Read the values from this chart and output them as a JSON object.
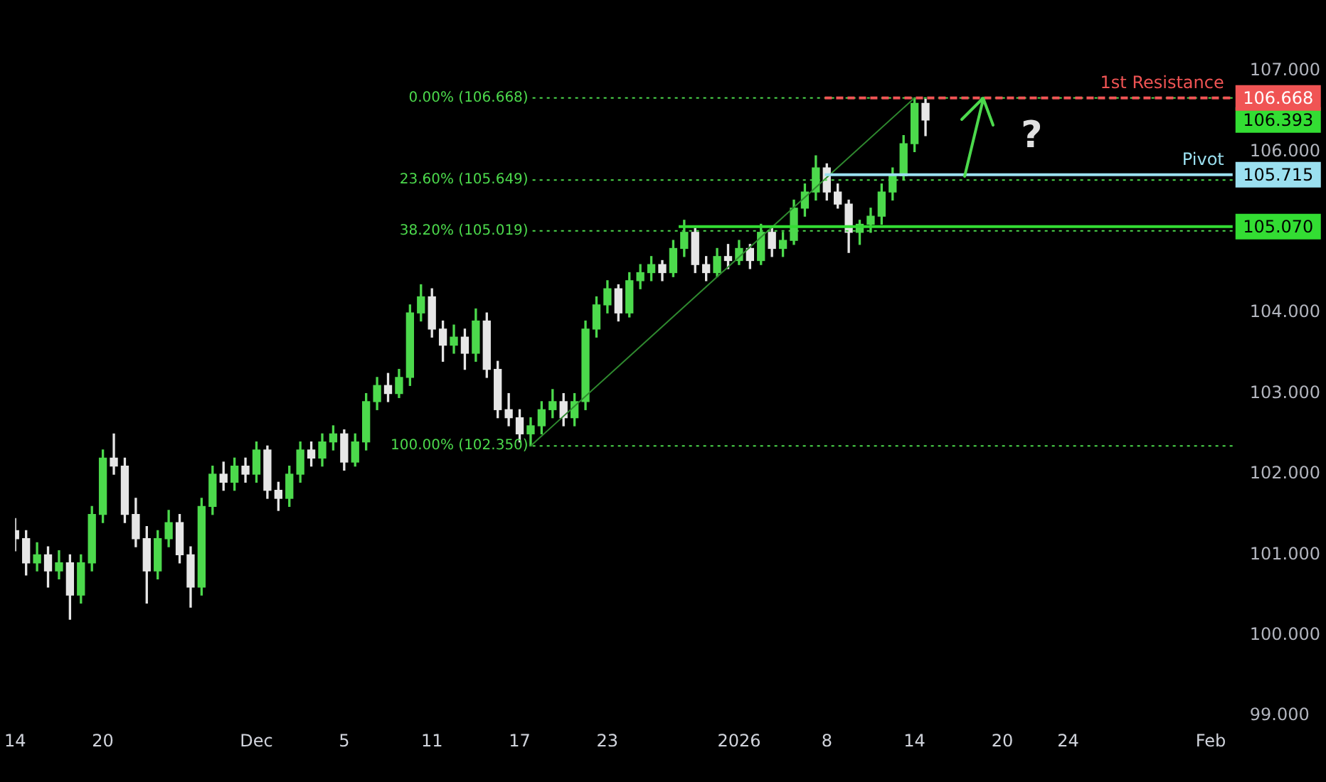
{
  "chart_data": {
    "type": "candlestick",
    "categories": [
      "14",
      null,
      null,
      null,
      null,
      null,
      null,
      null,
      "20",
      null,
      null,
      null,
      null,
      null,
      null,
      null,
      null,
      null,
      null,
      null,
      null,
      null,
      "Dec",
      null,
      null,
      null,
      null,
      null,
      null,
      null,
      "5",
      null,
      null,
      null,
      null,
      null,
      null,
      null,
      "11",
      null,
      null,
      null,
      null,
      null,
      null,
      null,
      "17",
      null,
      null,
      null,
      null,
      null,
      null,
      null,
      "23",
      null,
      null,
      null,
      null,
      null,
      null,
      null,
      null,
      null,
      null,
      null,
      "2026",
      null,
      null,
      null,
      null,
      null,
      null,
      null,
      "8",
      null,
      null,
      null,
      null,
      null,
      null,
      null,
      "14",
      null,
      null,
      null,
      null,
      null,
      null,
      null,
      "20",
      null,
      null,
      null,
      null,
      null,
      "24",
      null,
      null,
      null,
      null,
      null,
      null,
      null,
      null,
      null,
      null,
      null,
      null,
      "Feb",
      null,
      null
    ],
    "ohlc": [
      [
        101.3,
        101.45,
        101.05,
        101.2
      ],
      [
        101.2,
        101.3,
        100.75,
        100.9
      ],
      [
        100.9,
        101.15,
        100.8,
        101.0
      ],
      [
        101.0,
        101.1,
        100.6,
        100.8
      ],
      [
        100.8,
        101.05,
        100.7,
        100.9
      ],
      [
        100.9,
        101.0,
        100.2,
        100.5
      ],
      [
        100.5,
        101.0,
        100.4,
        100.9
      ],
      [
        100.9,
        101.6,
        100.8,
        101.5
      ],
      [
        101.5,
        102.3,
        101.4,
        102.2
      ],
      [
        102.2,
        102.5,
        102.0,
        102.1
      ],
      [
        102.1,
        102.2,
        101.4,
        101.5
      ],
      [
        101.5,
        101.7,
        101.1,
        101.2
      ],
      [
        101.2,
        101.35,
        100.4,
        100.8
      ],
      [
        100.8,
        101.3,
        100.7,
        101.2
      ],
      [
        101.2,
        101.55,
        101.1,
        101.4
      ],
      [
        101.4,
        101.5,
        100.9,
        101.0
      ],
      [
        101.0,
        101.1,
        100.35,
        100.6
      ],
      [
        100.6,
        101.7,
        100.5,
        101.6
      ],
      [
        101.6,
        102.1,
        101.5,
        102.0
      ],
      [
        102.0,
        102.15,
        101.8,
        101.9
      ],
      [
        101.9,
        102.2,
        101.8,
        102.1
      ],
      [
        102.1,
        102.2,
        101.9,
        102.0
      ],
      [
        102.0,
        102.4,
        101.9,
        102.3
      ],
      [
        102.3,
        102.35,
        101.7,
        101.8
      ],
      [
        101.8,
        101.9,
        101.55,
        101.7
      ],
      [
        101.7,
        102.1,
        101.6,
        102.0
      ],
      [
        102.0,
        102.4,
        101.9,
        102.3
      ],
      [
        102.3,
        102.4,
        102.1,
        102.2
      ],
      [
        102.2,
        102.5,
        102.1,
        102.4
      ],
      [
        102.4,
        102.6,
        102.3,
        102.5
      ],
      [
        102.5,
        102.55,
        102.05,
        102.15
      ],
      [
        102.15,
        102.5,
        102.1,
        102.4
      ],
      [
        102.4,
        103.0,
        102.3,
        102.9
      ],
      [
        102.9,
        103.2,
        102.8,
        103.1
      ],
      [
        103.1,
        103.25,
        102.9,
        103.0
      ],
      [
        103.0,
        103.3,
        102.95,
        103.2
      ],
      [
        103.2,
        104.1,
        103.1,
        104.0
      ],
      [
        104.0,
        104.35,
        103.9,
        104.2
      ],
      [
        104.2,
        104.3,
        103.7,
        103.8
      ],
      [
        103.8,
        103.9,
        103.4,
        103.6
      ],
      [
        103.6,
        103.85,
        103.5,
        103.7
      ],
      [
        103.7,
        103.8,
        103.3,
        103.5
      ],
      [
        103.5,
        104.05,
        103.4,
        103.9
      ],
      [
        103.9,
        104.0,
        103.2,
        103.3
      ],
      [
        103.3,
        103.4,
        102.7,
        102.8
      ],
      [
        102.8,
        103.0,
        102.6,
        102.7
      ],
      [
        102.7,
        102.8,
        102.4,
        102.5
      ],
      [
        102.5,
        102.7,
        102.35,
        102.6
      ],
      [
        102.6,
        102.9,
        102.5,
        102.8
      ],
      [
        102.8,
        103.05,
        102.7,
        102.9
      ],
      [
        102.9,
        103.0,
        102.6,
        102.7
      ],
      [
        102.7,
        103.0,
        102.6,
        102.9
      ],
      [
        102.9,
        103.9,
        102.8,
        103.8
      ],
      [
        103.8,
        104.2,
        103.7,
        104.1
      ],
      [
        104.1,
        104.4,
        104.0,
        104.3
      ],
      [
        104.3,
        104.35,
        103.9,
        104.0
      ],
      [
        104.0,
        104.5,
        103.95,
        104.4
      ],
      [
        104.4,
        104.6,
        104.3,
        104.5
      ],
      [
        104.5,
        104.7,
        104.4,
        104.6
      ],
      [
        104.6,
        104.65,
        104.4,
        104.5
      ],
      [
        104.5,
        104.9,
        104.45,
        104.8
      ],
      [
        104.8,
        105.15,
        104.7,
        105.0
      ],
      [
        105.0,
        105.05,
        104.5,
        104.6
      ],
      [
        104.6,
        104.7,
        104.4,
        104.5
      ],
      [
        104.5,
        104.8,
        104.45,
        104.7
      ],
      [
        104.7,
        104.85,
        104.55,
        104.65
      ],
      [
        104.65,
        104.9,
        104.6,
        104.8
      ],
      [
        104.8,
        104.85,
        104.55,
        104.65
      ],
      [
        104.65,
        105.1,
        104.6,
        105.0
      ],
      [
        105.0,
        105.05,
        104.7,
        104.8
      ],
      [
        104.8,
        105.0,
        104.7,
        104.9
      ],
      [
        104.9,
        105.4,
        104.85,
        105.3
      ],
      [
        105.3,
        105.6,
        105.2,
        105.5
      ],
      [
        105.5,
        105.95,
        105.4,
        105.8
      ],
      [
        105.8,
        105.85,
        105.4,
        105.5
      ],
      [
        105.5,
        105.6,
        105.3,
        105.35
      ],
      [
        105.35,
        105.4,
        104.75,
        105.0
      ],
      [
        105.0,
        105.15,
        104.85,
        105.1
      ],
      [
        105.1,
        105.3,
        105.0,
        105.2
      ],
      [
        105.2,
        105.6,
        105.1,
        105.5
      ],
      [
        105.5,
        105.8,
        105.4,
        105.7
      ],
      [
        105.7,
        106.2,
        105.65,
        106.1
      ],
      [
        106.1,
        106.668,
        106.0,
        106.6
      ],
      [
        106.6,
        106.65,
        106.2,
        106.393
      ],
      null,
      null,
      null,
      null,
      null,
      null,
      null,
      null,
      null,
      null,
      null,
      null,
      null,
      null,
      null,
      null,
      null,
      null,
      null,
      null,
      null,
      null,
      null,
      null,
      null,
      null,
      null,
      null
    ],
    "colors": [
      "#e6e6e6",
      "#e6e6e6",
      "#4cd94c",
      "#e6e6e6",
      "#4cd94c",
      "#e6e6e6",
      "#4cd94c",
      "#4cd94c",
      "#4cd94c",
      "#e6e6e6",
      "#e6e6e6",
      "#e6e6e6",
      "#e6e6e6",
      "#4cd94c",
      "#4cd94c",
      "#e6e6e6",
      "#e6e6e6",
      "#4cd94c",
      "#4cd94c",
      "#e6e6e6",
      "#4cd94c",
      "#e6e6e6",
      "#4cd94c",
      "#e6e6e6",
      "#e6e6e6",
      "#4cd94c",
      "#4cd94c",
      "#e6e6e6",
      "#4cd94c",
      "#4cd94c",
      "#e6e6e6",
      "#4cd94c",
      "#4cd94c",
      "#4cd94c",
      "#e6e6e6",
      "#4cd94c",
      "#4cd94c",
      "#4cd94c",
      "#e6e6e6",
      "#e6e6e6",
      "#4cd94c",
      "#e6e6e6",
      "#4cd94c",
      "#e6e6e6",
      "#e6e6e6",
      "#e6e6e6",
      "#e6e6e6",
      "#4cd94c",
      "#4cd94c",
      "#4cd94c",
      "#e6e6e6",
      "#4cd94c",
      "#4cd94c",
      "#4cd94c",
      "#4cd94c",
      "#e6e6e6",
      "#4cd94c",
      "#4cd94c",
      "#4cd94c",
      "#e6e6e6",
      "#4cd94c",
      "#4cd94c",
      "#e6e6e6",
      "#e6e6e6",
      "#4cd94c",
      "#e6e6e6",
      "#4cd94c",
      "#e6e6e6",
      "#4cd94c",
      "#e6e6e6",
      "#4cd94c",
      "#4cd94c",
      "#4cd94c",
      "#4cd94c",
      "#e6e6e6",
      "#e6e6e6",
      "#e6e6e6",
      "#4cd94c",
      "#4cd94c",
      "#4cd94c",
      "#4cd94c",
      "#4cd94c",
      "#4cd94c",
      "#e6e6e6",
      null,
      null,
      null,
      null,
      null,
      null,
      null,
      null,
      null,
      null,
      null,
      null,
      null,
      null,
      null,
      null,
      null,
      null,
      null,
      null,
      null,
      null,
      null,
      null,
      null,
      null,
      null,
      null
    ],
    "series": [
      {
        "type": "line",
        "color": "#2f8a2f",
        "values": [
          null,
          null,
          null,
          null,
          null,
          null,
          null,
          null,
          null,
          null,
          null,
          null,
          null,
          null,
          null,
          null,
          null,
          null,
          null,
          null,
          null,
          null,
          null,
          null,
          null,
          null,
          null,
          null,
          null,
          null,
          null,
          null,
          null,
          null,
          null,
          null,
          null,
          null,
          null,
          null,
          null,
          null,
          null,
          null,
          null,
          null,
          null,
          102.35,
          null,
          null,
          null,
          null,
          null,
          null,
          null,
          null,
          null,
          null,
          null,
          null,
          null,
          null,
          null,
          null,
          null,
          null,
          null,
          null,
          null,
          null,
          null,
          null,
          null,
          null,
          null,
          null,
          null,
          null,
          null,
          null,
          null,
          null,
          106.668,
          null,
          null,
          null,
          null,
          null,
          null,
          null,
          null,
          null,
          null,
          null,
          null,
          null,
          null,
          null,
          null,
          null,
          null,
          null,
          null,
          null,
          null,
          null,
          null,
          null,
          null,
          null,
          null,
          null
        ]
      }
    ],
    "ylim": [
      99,
      107
    ],
    "yticks": [
      {
        "value": 99,
        "label": "99.000"
      },
      {
        "value": 100,
        "label": "100.000"
      },
      {
        "value": 101,
        "label": "101.000"
      },
      {
        "value": 102,
        "label": "102.000"
      },
      {
        "value": 103,
        "label": "103.000"
      },
      {
        "value": 104,
        "label": "104.000"
      },
      {
        "value": 106,
        "label": "106.000"
      },
      {
        "value": 107,
        "label": "107.000"
      }
    ],
    "ref_lines": [
      {
        "axis": "y",
        "value": 106.668,
        "label": "0.00% (106.668)",
        "color": "#4cd94c",
        "line_style": "dotted"
      },
      {
        "axis": "y",
        "value": 105.649,
        "label": "23.60% (105.649)",
        "color": "#4cd94c",
        "line_style": "dotted"
      },
      {
        "axis": "y",
        "value": 105.019,
        "label": "38.20% (105.019)",
        "color": "#4cd94c",
        "line_style": "dotted"
      },
      {
        "axis": "y",
        "value": 102.35,
        "label": "100.00% (102.350)",
        "color": "#4cd94c",
        "line_style": "dotted"
      },
      {
        "axis": "y",
        "value": 106.668,
        "label": "1st Resistance",
        "color": "#f05454",
        "line_style": "dashed"
      },
      {
        "axis": "y",
        "value": 105.715,
        "label": "Pivot",
        "color": "#9be0f0",
        "line_style": "solid"
      },
      {
        "axis": "y",
        "value": 105.07,
        "color": "#33dd33",
        "line_style": "solid"
      }
    ],
    "annotations": [
      "106.393",
      {
        "text": "?",
        "y": 106.668
      },
      "106.668",
      "105.715",
      "105.070"
    ]
  }
}
